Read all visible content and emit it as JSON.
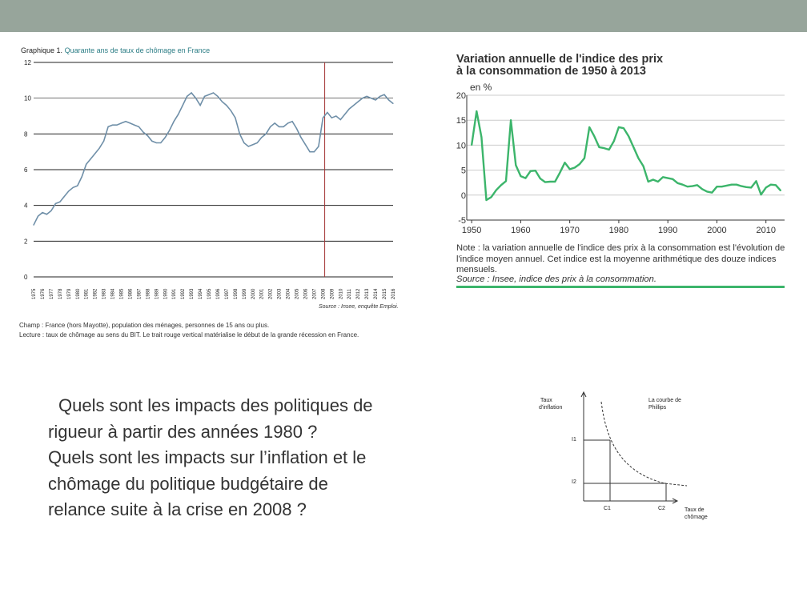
{
  "slide": {
    "header_color": "#97a59b"
  },
  "unemployment": {
    "title_prefix": "Graphique 1.",
    "title_main": "Quarante ans de taux de chômage en France",
    "source": "Source : Insee, enquête Emploi.",
    "note_champ": "Champ : France (hors Mayotte), population des ménages, personnes de 15 ans ou plus.",
    "note_lecture": "Lecture : taux de chômage au sens du BIT. Le trait rouge vertical matérialise le début de la grande récession en France."
  },
  "cpi": {
    "title_line1": "Variation annuelle de l'indice des prix",
    "title_line2": "à la consommation de 1950 à 2013",
    "unit": "en %",
    "note": "Note : la variation annuelle de l'indice des prix à la consommation est l'évolution de l'indice moyen annuel. Cet indice est la moyenne arithmétique des douze indices mensuels.",
    "source": "Source : Insee, indice des prix à la consommation."
  },
  "question": {
    "line1": "Quels sont les impacts des politiques de",
    "line2": "rigueur à partir des  années 1980 ?",
    "line3": "Quels  sont les impacts sur l’inflation et le",
    "line4": "chômage du politique budgétaire de",
    "line5": "relance suite à la crise en 2008 ?"
  },
  "phillips": {
    "y_label_line1": "Taux",
    "y_label_line2": "d'inflation",
    "curve_label_line1": "La courbe de",
    "curve_label_line2": "Phillips",
    "i1": "I1",
    "i2": "I2",
    "c1": "C1",
    "c2": "C2",
    "x_label_line1": "Taux de",
    "x_label_line2": "chômage"
  },
  "chart_data": [
    {
      "type": "line",
      "title": "Quarante ans de taux de chômage en France",
      "ylim": [
        0,
        12
      ],
      "y_ticks": [
        0,
        2,
        4,
        6,
        8,
        10,
        12
      ],
      "x_ticks": [
        "1975",
        "1976",
        "1977",
        "1978",
        "1979",
        "1980",
        "1981",
        "1982",
        "1983",
        "1984",
        "1985",
        "1986",
        "1987",
        "1988",
        "1989",
        "1990",
        "1991",
        "1992",
        "1993",
        "1994",
        "1995",
        "1996",
        "1997",
        "1998",
        "1999",
        "2000",
        "2001",
        "2002",
        "2003",
        "2004",
        "2005",
        "2006",
        "2007",
        "2008",
        "2009",
        "2010",
        "2011",
        "2012",
        "2013",
        "2014",
        "2015",
        "2016"
      ],
      "grid": true,
      "reference_line": {
        "x": 2008.2,
        "color": "#a33333"
      },
      "series": [
        {
          "color": "#6f8fa8",
          "x": [
            1975.0,
            1975.5,
            1976.0,
            1976.5,
            1977.0,
            1977.5,
            1978.0,
            1978.5,
            1979.0,
            1979.5,
            1980.0,
            1980.5,
            1981.0,
            1981.5,
            1982.0,
            1982.5,
            1983.0,
            1983.5,
            1984.0,
            1984.5,
            1985.0,
            1985.5,
            1986.0,
            1986.5,
            1987.0,
            1987.5,
            1988.0,
            1988.5,
            1989.0,
            1989.5,
            1990.0,
            1990.5,
            1991.0,
            1991.5,
            1992.0,
            1992.5,
            1993.0,
            1993.5,
            1994.0,
            1994.5,
            1995.0,
            1995.5,
            1996.0,
            1996.5,
            1997.0,
            1997.5,
            1998.0,
            1998.5,
            1999.0,
            1999.5,
            2000.0,
            2000.5,
            2001.0,
            2001.5,
            2002.0,
            2002.5,
            2003.0,
            2003.5,
            2004.0,
            2004.5,
            2005.0,
            2005.5,
            2006.0,
            2006.5,
            2007.0,
            2007.5,
            2008.0,
            2008.5,
            2009.0,
            2009.5,
            2010.0,
            2010.5,
            2011.0,
            2011.5,
            2012.0,
            2012.5,
            2013.0,
            2013.5,
            2014.0,
            2014.5,
            2015.0,
            2015.5,
            2016.0
          ],
          "values": [
            2.9,
            3.4,
            3.6,
            3.5,
            3.7,
            4.1,
            4.2,
            4.5,
            4.8,
            5.0,
            5.1,
            5.6,
            6.3,
            6.6,
            6.9,
            7.2,
            7.6,
            8.4,
            8.5,
            8.5,
            8.6,
            8.7,
            8.6,
            8.5,
            8.4,
            8.1,
            7.9,
            7.6,
            7.5,
            7.5,
            7.8,
            8.2,
            8.7,
            9.1,
            9.6,
            10.1,
            10.3,
            10.0,
            9.6,
            10.1,
            10.2,
            10.3,
            10.1,
            9.8,
            9.6,
            9.3,
            8.9,
            8.0,
            7.5,
            7.3,
            7.4,
            7.5,
            7.8,
            8.0,
            8.4,
            8.6,
            8.4,
            8.4,
            8.6,
            8.7,
            8.3,
            7.8,
            7.4,
            7.0,
            7.0,
            7.3,
            8.9,
            9.2,
            8.9,
            9.0,
            8.8,
            9.1,
            9.4,
            9.6,
            9.8,
            10.0,
            10.1,
            10.0,
            9.9,
            10.1,
            10.2,
            9.9,
            9.7
          ]
        }
      ]
    },
    {
      "type": "line",
      "title": "Variation annuelle de l'indice des prix à la consommation de 1950 à 2013",
      "ylabel": "en %",
      "ylim": [
        -5,
        20
      ],
      "y_ticks": [
        -5,
        0,
        5,
        10,
        15,
        20
      ],
      "x_ticks": [
        1950,
        1960,
        1970,
        1980,
        1990,
        2000,
        2010
      ],
      "grid": true,
      "series": [
        {
          "color": "#3cb56b",
          "x": [
            1950,
            1951,
            1952,
            1953,
            1954,
            1955,
            1956,
            1957,
            1958,
            1959,
            1960,
            1961,
            1962,
            1963,
            1964,
            1965,
            1966,
            1967,
            1968,
            1969,
            1970,
            1971,
            1972,
            1973,
            1974,
            1975,
            1976,
            1977,
            1978,
            1979,
            1980,
            1981,
            1982,
            1983,
            1984,
            1985,
            1986,
            1987,
            1988,
            1989,
            1990,
            1991,
            1992,
            1993,
            1994,
            1995,
            1996,
            1997,
            1998,
            1999,
            2000,
            2001,
            2002,
            2003,
            2004,
            2005,
            2006,
            2007,
            2008,
            2009,
            2010,
            2011,
            2012,
            2013
          ],
          "values": [
            10.0,
            16.8,
            11.6,
            -1.0,
            -0.4,
            1.0,
            2.0,
            2.8,
            15.0,
            6.0,
            3.8,
            3.4,
            4.8,
            4.9,
            3.3,
            2.6,
            2.7,
            2.7,
            4.5,
            6.5,
            5.2,
            5.5,
            6.2,
            7.4,
            13.6,
            11.8,
            9.6,
            9.4,
            9.1,
            10.8,
            13.6,
            13.4,
            11.8,
            9.6,
            7.4,
            5.8,
            2.7,
            3.1,
            2.7,
            3.6,
            3.4,
            3.2,
            2.4,
            2.1,
            1.7,
            1.8,
            2.0,
            1.2,
            0.7,
            0.5,
            1.7,
            1.7,
            1.9,
            2.1,
            2.1,
            1.8,
            1.6,
            1.5,
            2.8,
            0.1,
            1.5,
            2.1,
            2.0,
            0.9
          ]
        }
      ]
    }
  ]
}
